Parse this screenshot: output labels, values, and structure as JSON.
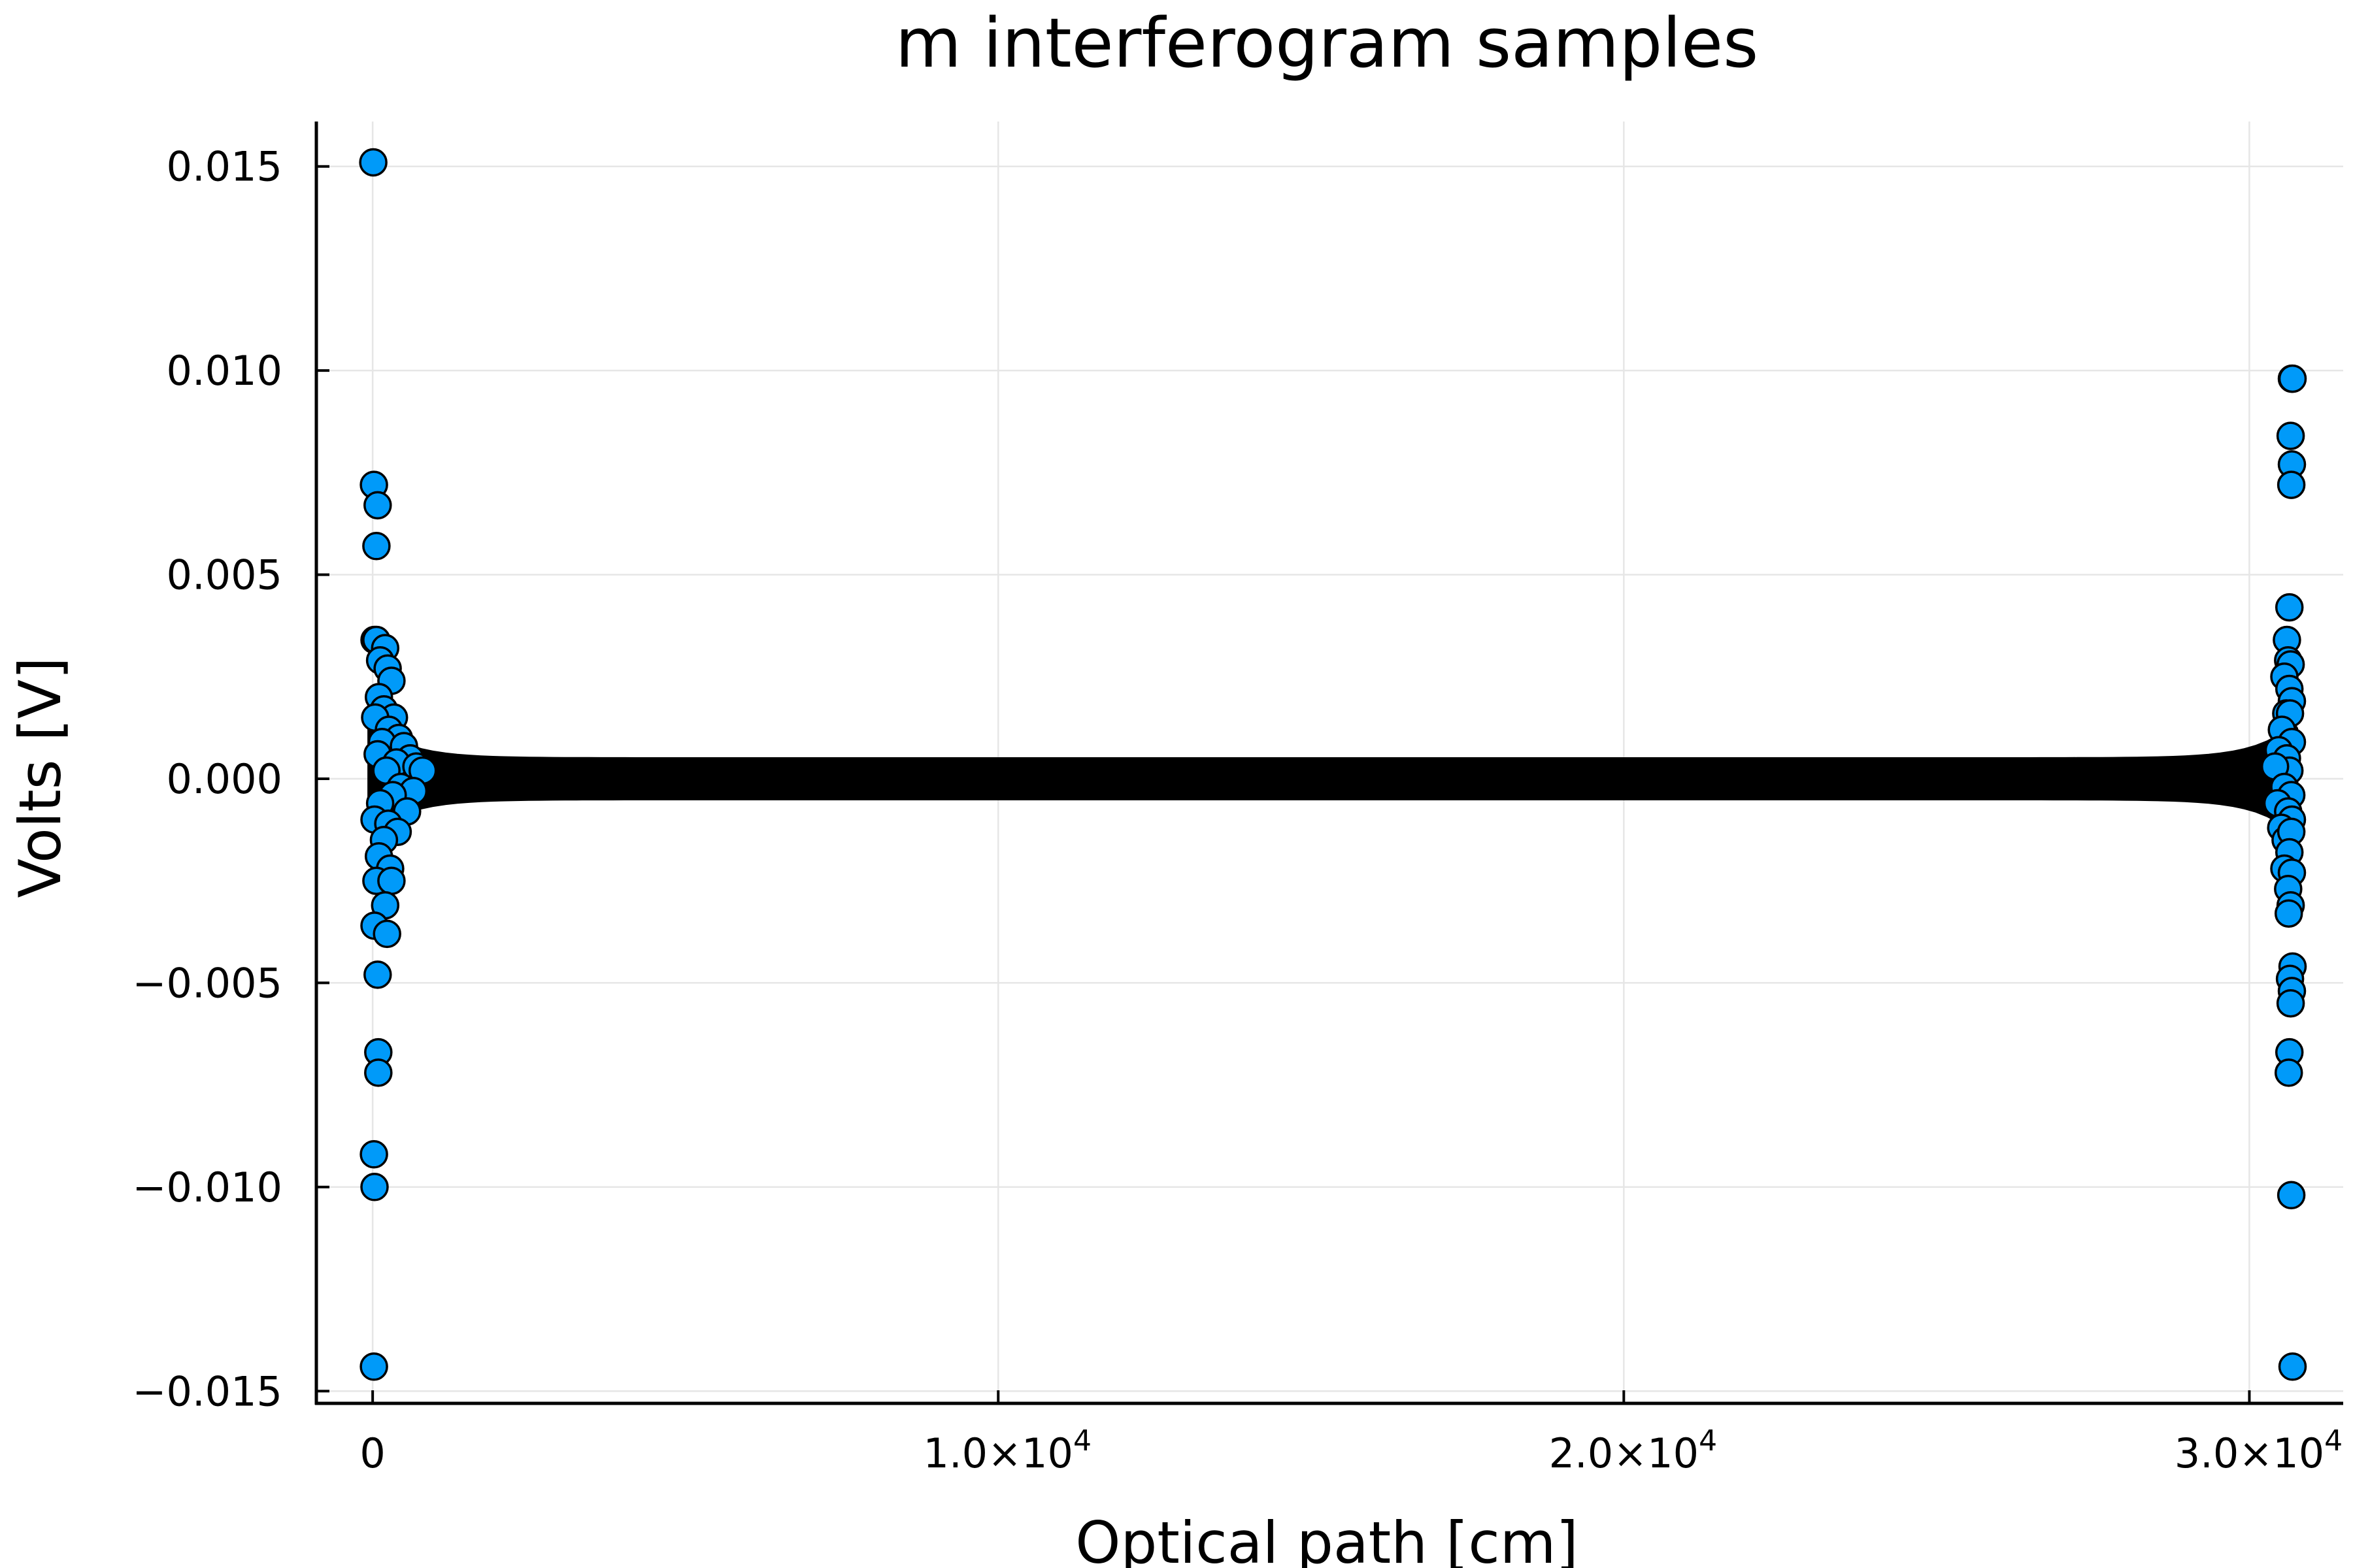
{
  "chart_data": {
    "type": "scatter",
    "title": "m interferogram samples",
    "xlabel": "Optical path [cm]",
    "ylabel": "Volts [V]",
    "xlim": [
      -900,
      31500
    ],
    "ylim": [
      -0.0153,
      0.0161
    ],
    "grid": true,
    "legend": "none",
    "marker_color": "#009af9",
    "marker_edge_color": "#000000",
    "x_ticks": [
      {
        "value": 0,
        "mantissa": "0",
        "exponent": ""
      },
      {
        "value": 10000,
        "mantissa": "1.0×10",
        "exponent": "4"
      },
      {
        "value": 20000,
        "mantissa": "2.0×10",
        "exponent": "4"
      },
      {
        "value": 30000,
        "mantissa": "3.0×10",
        "exponent": "4"
      }
    ],
    "y_ticks": [
      {
        "value": 0.015,
        "label": "0.015"
      },
      {
        "value": 0.01,
        "label": "0.010"
      },
      {
        "value": 0.005,
        "label": "0.005"
      },
      {
        "value": 0.0,
        "label": "0.000"
      },
      {
        "value": -0.005,
        "label": "−0.005"
      },
      {
        "value": -0.01,
        "label": "−0.010"
      },
      {
        "value": -0.015,
        "label": "−0.015"
      }
    ],
    "series": [
      {
        "points": [
          [
            10,
            0.0151
          ],
          [
            20,
            0.0072
          ],
          [
            80,
            0.0067
          ],
          [
            60,
            0.0057
          ],
          [
            30,
            0.0034
          ],
          [
            60,
            0.0034
          ],
          [
            200,
            0.0032
          ],
          [
            120,
            0.0029
          ],
          [
            240,
            0.0027
          ],
          [
            300,
            0.0024
          ],
          [
            100,
            0.002
          ],
          [
            180,
            0.0017
          ],
          [
            340,
            0.0015
          ],
          [
            40,
            0.0015
          ],
          [
            260,
            0.0012
          ],
          [
            420,
            0.001
          ],
          [
            150,
            0.0009
          ],
          [
            500,
            0.0008
          ],
          [
            80,
            0.0006
          ],
          [
            600,
            0.0005
          ],
          [
            380,
            0.0004
          ],
          [
            700,
            0.0003
          ],
          [
            220,
            0.0002
          ],
          [
            800,
            0.0002
          ],
          [
            450,
            -0.0002
          ],
          [
            650,
            -0.0003
          ],
          [
            320,
            -0.0004
          ],
          [
            120,
            -0.0006
          ],
          [
            550,
            -0.0008
          ],
          [
            30,
            -0.001
          ],
          [
            250,
            -0.0011
          ],
          [
            400,
            -0.0013
          ],
          [
            180,
            -0.0015
          ],
          [
            100,
            -0.0019
          ],
          [
            280,
            -0.0022
          ],
          [
            60,
            -0.0025
          ],
          [
            300,
            -0.0025
          ],
          [
            200,
            -0.0031
          ],
          [
            30,
            -0.0036
          ],
          [
            230,
            -0.0038
          ],
          [
            80,
            -0.0048
          ],
          [
            90,
            -0.0067
          ],
          [
            90,
            -0.0072
          ],
          [
            20,
            -0.0092
          ],
          [
            30,
            -0.01
          ],
          [
            20,
            -0.0144
          ],
          [
            30680,
            0.0098
          ],
          [
            30690,
            0.0098
          ],
          [
            30660,
            0.0084
          ],
          [
            30680,
            0.0077
          ],
          [
            30670,
            0.0072
          ],
          [
            30640,
            0.0042
          ],
          [
            30600,
            0.0034
          ],
          [
            30620,
            0.0029
          ],
          [
            30660,
            0.0028
          ],
          [
            30560,
            0.0025
          ],
          [
            30640,
            0.0022
          ],
          [
            30680,
            0.0019
          ],
          [
            30590,
            0.0016
          ],
          [
            30650,
            0.0016
          ],
          [
            30520,
            0.0012
          ],
          [
            30680,
            0.0009
          ],
          [
            30470,
            0.0007
          ],
          [
            30600,
            0.0005
          ],
          [
            30640,
            0.0002
          ],
          [
            30410,
            0.0003
          ],
          [
            30560,
            -0.0002
          ],
          [
            30670,
            -0.0004
          ],
          [
            30450,
            -0.0006
          ],
          [
            30620,
            -0.0008
          ],
          [
            30680,
            -0.001
          ],
          [
            30510,
            -0.0012
          ],
          [
            30580,
            -0.0015
          ],
          [
            30670,
            -0.0013
          ],
          [
            30640,
            -0.0018
          ],
          [
            30560,
            -0.0022
          ],
          [
            30680,
            -0.0023
          ],
          [
            30620,
            -0.0027
          ],
          [
            30660,
            -0.0031
          ],
          [
            30630,
            -0.0033
          ],
          [
            30690,
            -0.0046
          ],
          [
            30650,
            -0.0049
          ],
          [
            30680,
            -0.0052
          ],
          [
            30660,
            -0.0055
          ],
          [
            30640,
            -0.0067
          ],
          [
            30630,
            -0.0072
          ],
          [
            30670,
            -0.0102
          ],
          [
            30690,
            -0.0144
          ]
        ],
        "dense_band": {
          "x_start": 0,
          "x_end": 30700,
          "center": 0.0,
          "core_half_height": 0.0004,
          "flare_half_height": 0.0012,
          "flare_width": 1800
        }
      }
    ]
  }
}
